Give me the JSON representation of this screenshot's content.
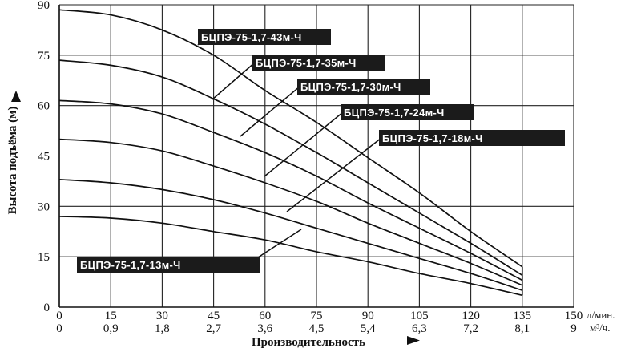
{
  "chart_data": {
    "type": "line",
    "xlabel": "Производительность",
    "ylabel": "Высота подъёма (м)",
    "x_unit_primary": "л/мин.",
    "x_unit_secondary": "м³/ч.",
    "x_ticks_primary": [
      "0",
      "15",
      "30",
      "45",
      "60",
      "75",
      "90",
      "105",
      "120",
      "135",
      "150"
    ],
    "x_ticks_secondary": [
      "0",
      "0,9",
      "1,8",
      "2,7",
      "3,6",
      "4,5",
      "5,4",
      "6,3",
      "7,2",
      "8,1",
      "9"
    ],
    "y_ticks": [
      "0",
      "15",
      "30",
      "45",
      "60",
      "75",
      "90"
    ],
    "xlim": [
      0,
      150
    ],
    "ylim": [
      0,
      90
    ],
    "grid": true,
    "x": [
      0,
      15,
      30,
      45,
      60,
      75,
      90,
      105,
      120,
      135
    ],
    "series": [
      {
        "name": "БЦПЭ-75-1,7-43м-Ч",
        "values": [
          88.5,
          87,
          82.5,
          75,
          64.5,
          55,
          44.5,
          34,
          22.5,
          12
        ]
      },
      {
        "name": "БЦПЭ-75-1,7-35м-Ч",
        "values": [
          73.5,
          72,
          68.5,
          62,
          54.5,
          46,
          37,
          28,
          19,
          9.5
        ]
      },
      {
        "name": "БЦПЭ-75-1,7-30м-Ч",
        "values": [
          61.5,
          60.5,
          57.5,
          52,
          46,
          39,
          31,
          23.5,
          16,
          8
        ]
      },
      {
        "name": "БЦПЭ-75-1,7-24м-Ч",
        "values": [
          50,
          49,
          46.5,
          42,
          37,
          31.5,
          25,
          19,
          13,
          6.5
        ]
      },
      {
        "name": "БЦПЭ-75-1,7-18м-Ч",
        "values": [
          38,
          37,
          35,
          32,
          28,
          23.5,
          19,
          14.5,
          10,
          5
        ]
      },
      {
        "name": "БЦПЭ-75-1,7-13м-Ч",
        "values": [
          27,
          26.5,
          25,
          22.5,
          20,
          16.5,
          13.5,
          10,
          7,
          3.5
        ]
      }
    ]
  }
}
